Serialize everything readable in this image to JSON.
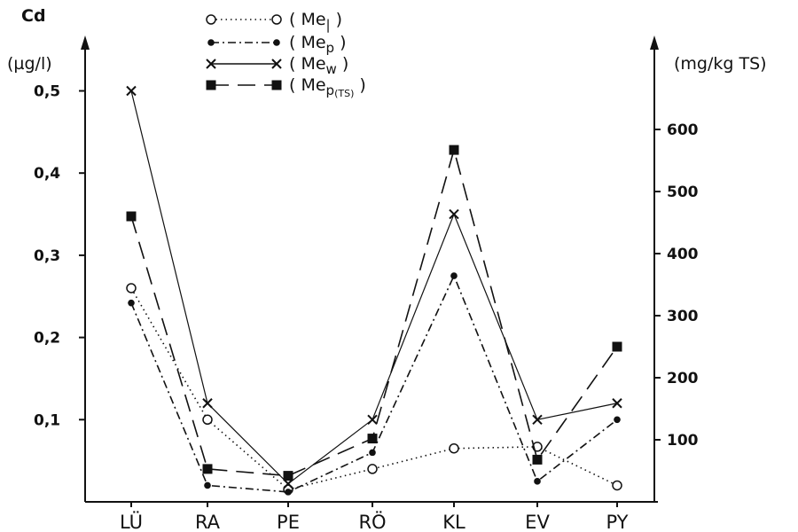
{
  "chart_data": {
    "type": "line",
    "title": "",
    "xlabel": "",
    "categories": [
      "LÜ",
      "RA",
      "PE",
      "RÖ",
      "KL",
      "EV",
      "PY"
    ],
    "left_axis": {
      "title": "Cd",
      "unit": "(µg/l)",
      "range": [
        0,
        0.55
      ],
      "ticks": [
        0.1,
        0.2,
        0.3,
        0.4,
        0.5
      ],
      "tick_labels": [
        "0,1",
        "0,2",
        "0,3",
        "0,4",
        "0,5"
      ]
    },
    "right_axis": {
      "unit": "(mg/kg TS)",
      "range": [
        0,
        733
      ],
      "ticks": [
        100,
        200,
        300,
        400,
        500,
        600
      ],
      "tick_labels": [
        "100",
        "200",
        "300",
        "400",
        "500",
        "600"
      ]
    },
    "legend_position": "top-center",
    "series": [
      {
        "name": "( Me | )",
        "label_main": "( Me",
        "label_sub": "|",
        "label_close": " )",
        "axis": "left",
        "line_style": "dotted",
        "marker": "open-circle",
        "values": [
          0.26,
          0.1,
          0.015,
          0.04,
          0.065,
          0.067,
          0.02
        ]
      },
      {
        "name": "( Me p )",
        "label_main": "( Me",
        "label_sub": "p",
        "label_close": " )",
        "axis": "left",
        "line_style": "dash-dot",
        "marker": "filled-circle",
        "values": [
          0.242,
          0.02,
          0.012,
          0.06,
          0.275,
          0.025,
          0.1
        ]
      },
      {
        "name": "( Me w )",
        "label_main": "( Me",
        "label_sub": "w",
        "label_close": " )",
        "axis": "left",
        "line_style": "solid",
        "marker": "cross",
        "values": [
          0.5,
          0.12,
          0.022,
          0.1,
          0.35,
          0.1,
          0.12
        ]
      },
      {
        "name": "( Me p(TS) )",
        "label_main": "( Me",
        "label_sub": "p",
        "label_subsub": "(TS)",
        "label_close": " )",
        "axis": "right",
        "line_style": "dashed",
        "marker": "filled-square",
        "values": [
          460,
          53,
          42,
          102,
          567,
          68,
          250
        ]
      }
    ]
  }
}
